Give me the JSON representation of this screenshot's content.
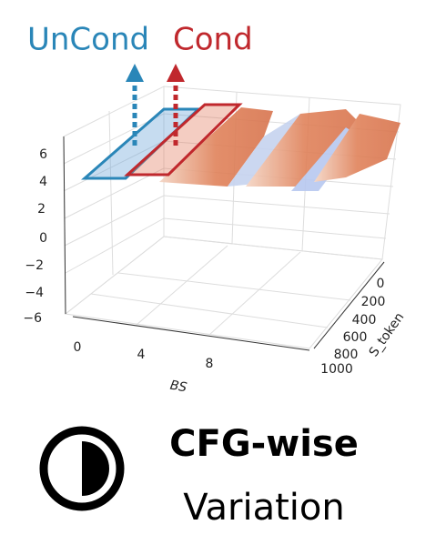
{
  "header": {
    "uncond": "UnCond",
    "cond": "Cond"
  },
  "plot": {
    "z_ticks": [
      "6",
      "4",
      "2",
      "0",
      "−2",
      "−4",
      "−6"
    ],
    "x_ticks": [
      "0",
      "4",
      "8"
    ],
    "x_label": "BS",
    "y_ticks": [
      "0",
      "200",
      "400",
      "600",
      "800",
      "1000"
    ],
    "y_label": "S_token"
  },
  "caption": {
    "title": "CFG-wise",
    "subtitle": "Variation"
  }
}
